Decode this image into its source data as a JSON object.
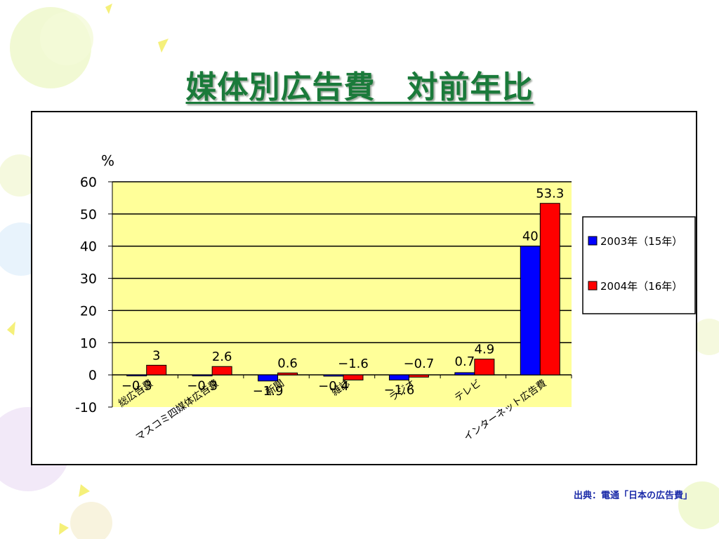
{
  "slide": {
    "title": "媒体別広告費　対前年比",
    "source": "出典：電通「日本の広告費」"
  },
  "colors": {
    "title": "#1a7a3a",
    "plot_background": "#ffff99",
    "series_2003": "#0000ff",
    "series_2004": "#ff0000",
    "source_text": "#1a2aa8"
  },
  "chart_data": {
    "type": "bar",
    "unit_label": "%",
    "categories": [
      "総広告費",
      "マスコミ四媒体広告費",
      "新聞",
      "雑誌",
      "ラジオ",
      "テレビ",
      "インターネット広告費"
    ],
    "series": [
      {
        "name": "2003年（15年）",
        "color": "#0000ff",
        "values": [
          -0.3,
          -0.3,
          -1.9,
          -0.4,
          -1.6,
          0.7,
          40
        ]
      },
      {
        "name": "2004年（16年）",
        "color": "#ff0000",
        "values": [
          3,
          2.6,
          0.6,
          -1.6,
          -0.7,
          4.9,
          53.3
        ]
      }
    ],
    "data_labels": [
      [
        "−0.3",
        "−0.3",
        "−1.9",
        "−0.4",
        "−1.6",
        "0.7",
        "40"
      ],
      [
        "3",
        "2.6",
        "0.6",
        "−1.6",
        "−0.7",
        "4.9",
        "53.3"
      ]
    ],
    "ylim": [
      -10,
      60
    ],
    "yticks": [
      -10,
      0,
      10,
      20,
      30,
      40,
      50,
      60
    ],
    "grid": true,
    "legend_position": "right"
  }
}
